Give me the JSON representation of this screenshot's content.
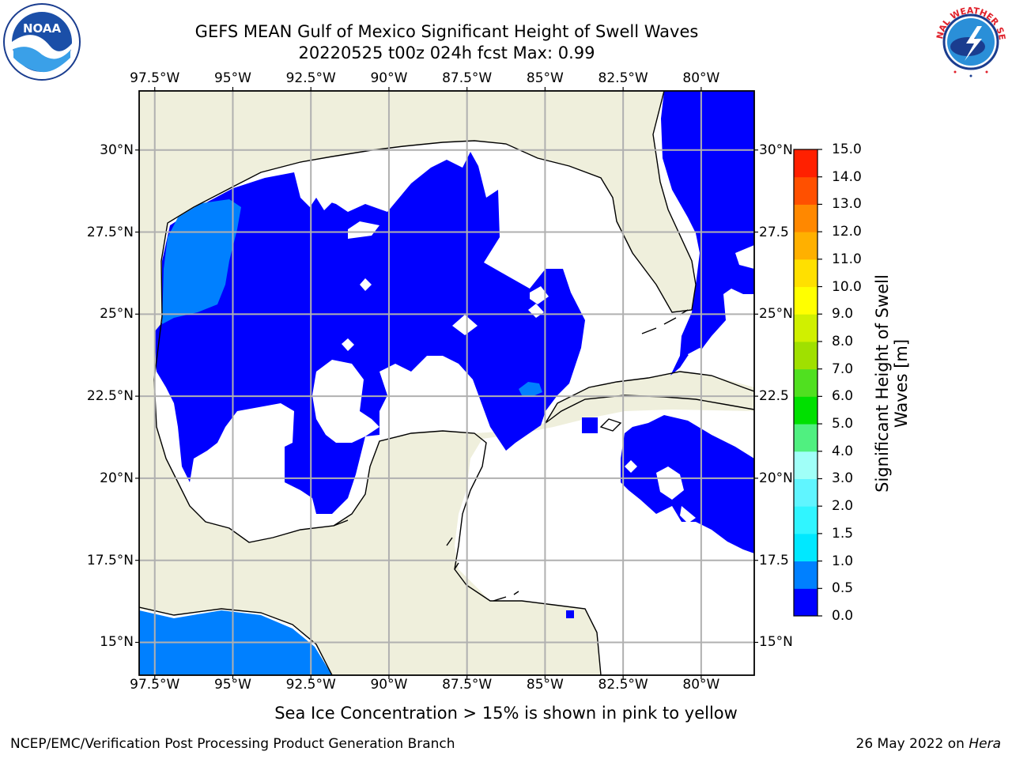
{
  "title": {
    "line1": "GEFS MEAN Gulf of Mexico Significant Height of Swell Waves",
    "line2": "20220525 t00z 024h fcst   Max: 0.99"
  },
  "logos": {
    "left": "noaa-logo",
    "left_text": "NOAA",
    "right": "national-weather-service-logo",
    "right_text": "NATIONAL WEATHER SERVICE"
  },
  "map": {
    "lon_ticks": [
      "97.5°W",
      "95°W",
      "92.5°W",
      "90°W",
      "87.5°W",
      "85°W",
      "82.5°W",
      "80°W"
    ],
    "lon_values": [
      -97.5,
      -95,
      -92.5,
      -90,
      -87.5,
      -85,
      -82.5,
      -80
    ],
    "lat_ticks_left": [
      "30°N",
      "27.5°N",
      "25°N",
      "22.5°N",
      "20°N",
      "17.5°N",
      "15°N"
    ],
    "lat_ticks_right": [
      "30°N",
      "27.5",
      "25°N",
      "22.5",
      "20°N",
      "17.5",
      "15°N"
    ],
    "lat_values": [
      30,
      27.5,
      25,
      22.5,
      20,
      17.5,
      15
    ],
    "extent": {
      "lon": [
        -98,
        -78.3
      ],
      "lat": [
        14,
        31.8
      ]
    },
    "colors": {
      "land": "#efefdc",
      "ocean": "#ffffff",
      "coast": "#000000",
      "grid": "#b0b0b0"
    }
  },
  "colorbar": {
    "labels": [
      "0.0",
      "0.5",
      "1.0",
      "1.5",
      "2.0",
      "3.0",
      "4.0",
      "5.0",
      "6.0",
      "7.0",
      "8.0",
      "9.0",
      "10.0",
      "11.0",
      "12.0",
      "13.0",
      "14.0",
      "15.0"
    ],
    "colors": [
      "#0000ff",
      "#0080ff",
      "#00e8ff",
      "#30f5ff",
      "#60f5ff",
      "#a0fff8",
      "#50f080",
      "#00e000",
      "#50e020",
      "#a0e000",
      "#d0f000",
      "#ffff00",
      "#ffe000",
      "#ffb000",
      "#ff8800",
      "#ff5000",
      "#ff2000",
      "#ff0000"
    ],
    "title": "Significant Height of Swell Waves [m]",
    "title_line1": "Significant Height of Swell",
    "title_line2": "Waves [m]"
  },
  "note": "Sea Ice Concentration > 15% is shown in pink to yellow",
  "footer": {
    "left": "NCEP/EMC/Verification Post Processing Product Generation Branch",
    "right_prefix": "26 May 2022 on ",
    "right_host": "Hera"
  }
}
